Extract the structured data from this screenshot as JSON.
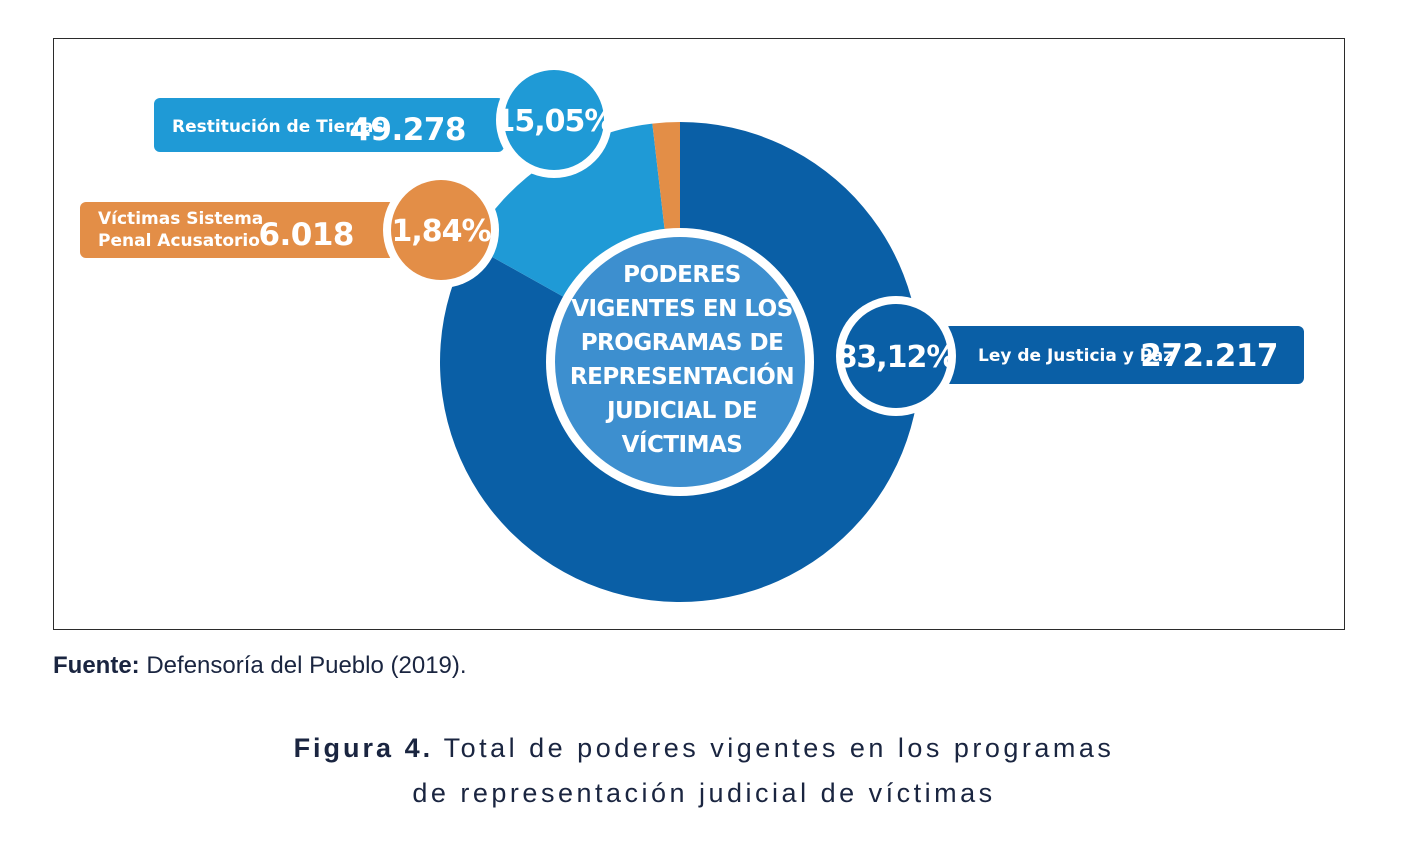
{
  "chart_data": {
    "type": "pie",
    "title": "PODERES VIGENTES EN LOS PROGRAMAS DE REPRESENTACIÓN JUDICIAL DE VÍCTIMAS",
    "categories": [
      "Ley de Justicia y Paz",
      "Restitución de Tierras",
      "Víctimas Sistema Penal Acusatorio"
    ],
    "values": [
      272217,
      49278,
      6018
    ],
    "value_labels": [
      "272.217",
      "49.278",
      "6.018"
    ],
    "percent_labels": [
      "83,12%",
      "15,05%",
      "1,84%"
    ],
    "percents": [
      83.12,
      15.05,
      1.84
    ],
    "colors": [
      "#0a5fa6",
      "#1f9ad6",
      "#e38e47"
    ],
    "legend": "none"
  },
  "center_label": "PODERES\nVIGENTES EN LOS\nPROGRAMAS DE\nREPRESENTACIÓN\nJUDICIAL DE\nVÍCTIMAS",
  "source": {
    "label": "Fuente:",
    "text": " Defensoría del Pueblo (2019)."
  },
  "caption": {
    "figure": "Figura 4.",
    "line1": " Total de poderes vigentes en los programas",
    "line2": "de representación judicial de víctimas"
  }
}
